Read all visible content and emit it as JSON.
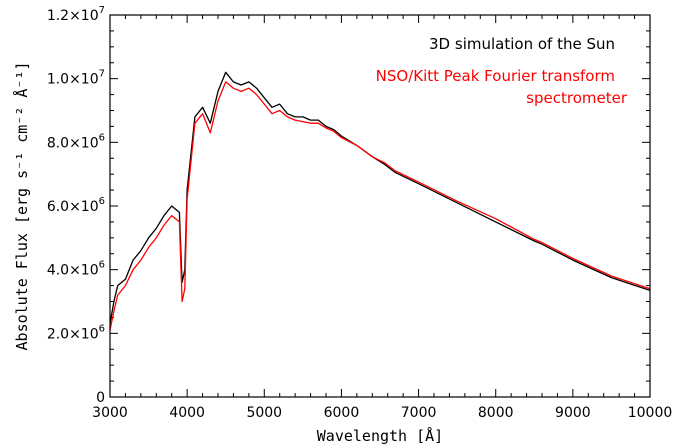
{
  "chart_data": {
    "type": "line",
    "xlabel": "Wavelength [Å]",
    "ylabel": "Absolute Flux [erg s⁻¹ cm⁻² Å⁻¹]",
    "xlim": [
      3000,
      10000
    ],
    "ylim": [
      0,
      12000000
    ],
    "x_ticks": [
      3000,
      4000,
      5000,
      6000,
      7000,
      8000,
      9000,
      10000
    ],
    "y_ticks": [
      {
        "value": 0,
        "label": "0",
        "exp": ""
      },
      {
        "value": 2000000,
        "label": "2.0×10",
        "exp": "6"
      },
      {
        "value": 4000000,
        "label": "4.0×10",
        "exp": "6"
      },
      {
        "value": 6000000,
        "label": "6.0×10",
        "exp": "6"
      },
      {
        "value": 8000000,
        "label": "8.0×10",
        "exp": "6"
      },
      {
        "value": 10000000,
        "label": "1.0×10",
        "exp": "7"
      },
      {
        "value": 12000000,
        "label": "1.2×10",
        "exp": "7"
      }
    ],
    "grid": false,
    "legend_placement": "top-right",
    "series": [
      {
        "name": "3D simulation of the Sun",
        "color": "#000000",
        "x": [
          3000,
          3050,
          3100,
          3200,
          3300,
          3400,
          3500,
          3600,
          3700,
          3800,
          3900,
          3935,
          3970,
          4000,
          4100,
          4200,
          4300,
          4400,
          4500,
          4600,
          4700,
          4800,
          4900,
          5000,
          5100,
          5200,
          5300,
          5400,
          5500,
          5600,
          5700,
          5800,
          5900,
          6000,
          6200,
          6400,
          6563,
          6700,
          7000,
          7500,
          8000,
          8500,
          8600,
          9000,
          9500,
          10000
        ],
        "y": [
          2300000,
          3000000,
          3500000,
          3700000,
          4300000,
          4600000,
          5000000,
          5300000,
          5700000,
          6000000,
          5800000,
          3600000,
          4000000,
          6500000,
          8800000,
          9100000,
          8600000,
          9600000,
          10200000,
          9900000,
          9800000,
          9900000,
          9700000,
          9400000,
          9100000,
          9200000,
          8900000,
          8800000,
          8800000,
          8700000,
          8700000,
          8500000,
          8400000,
          8200000,
          7900000,
          7550000,
          7300000,
          7050000,
          6700000,
          6100000,
          5500000,
          4900000,
          4800000,
          4300000,
          3750000,
          3350000
        ]
      },
      {
        "name": "NSO/Kitt Peak Fourier transform spectrometer",
        "color": "#ff0000",
        "x": [
          3000,
          3050,
          3100,
          3200,
          3300,
          3400,
          3500,
          3600,
          3700,
          3800,
          3900,
          3935,
          3970,
          4000,
          4100,
          4200,
          4300,
          4400,
          4500,
          4600,
          4700,
          4800,
          4900,
          5000,
          5100,
          5200,
          5300,
          5400,
          5500,
          5600,
          5700,
          5800,
          5900,
          6000,
          6200,
          6400,
          6563,
          6700,
          7000,
          7500,
          8000,
          8500,
          8600,
          9000,
          9500,
          10000
        ],
        "y": [
          2100000,
          2700000,
          3200000,
          3500000,
          4000000,
          4300000,
          4700000,
          5000000,
          5400000,
          5700000,
          5500000,
          3000000,
          3400000,
          6200000,
          8600000,
          8900000,
          8300000,
          9300000,
          9900000,
          9700000,
          9600000,
          9700000,
          9500000,
          9200000,
          8900000,
          9000000,
          8800000,
          8700000,
          8650000,
          8600000,
          8600000,
          8450000,
          8350000,
          8150000,
          7900000,
          7550000,
          7350000,
          7100000,
          6750000,
          6150000,
          5600000,
          4950000,
          4850000,
          4350000,
          3800000,
          3400000
        ]
      }
    ]
  }
}
